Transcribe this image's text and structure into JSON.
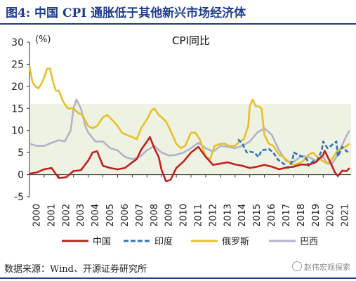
{
  "figure_title": "图4:  中国 CPI 通胀低于其他新兴市场经济体",
  "source_note": "数据来源：Wind、开源证券研究所",
  "watermark": "赵伟宏观探索",
  "colors": {
    "title": "#1f3d8a",
    "band": "#eef2e2",
    "china": "#c0201e",
    "india": "#2e75b6",
    "russia": "#e6c02a",
    "brazil": "#b3b3c8"
  },
  "chart_data": {
    "type": "line",
    "title": "CPI同比",
    "ylabel": "(%)",
    "xlabel": "",
    "ylim": [
      -5,
      30
    ],
    "xlim": [
      2000,
      2021.9
    ],
    "yticks": [
      -5,
      0,
      5,
      10,
      15,
      20,
      25,
      30
    ],
    "xtick_labels": [
      "2000",
      "2001",
      "2002",
      "2003",
      "2004",
      "2005",
      "2006",
      "2007",
      "2008",
      "2009",
      "2010",
      "2011",
      "2012",
      "2013",
      "2014",
      "2015",
      "2016",
      "2017",
      "2018",
      "2019",
      "2020",
      "2021"
    ],
    "shaded_band": [
      0,
      16
    ],
    "grid": false,
    "legend_position": "bottom",
    "series": [
      {
        "name": "中国",
        "color": "#c0201e",
        "style": "solid",
        "x": [
          2000,
          2000.5,
          2001,
          2001.5,
          2002,
          2002.5,
          2003,
          2003.5,
          2004,
          2004.3,
          2004.6,
          2005,
          2005.5,
          2006,
          2006.5,
          2007,
          2007.3,
          2007.6,
          2008,
          2008.2,
          2008.5,
          2008.8,
          2009,
          2009.3,
          2009.6,
          2010,
          2010.5,
          2011,
          2011.5,
          2012,
          2012.5,
          2013,
          2013.5,
          2014,
          2014.5,
          2015,
          2015.5,
          2016,
          2016.5,
          2017,
          2017.5,
          2018,
          2018.5,
          2019,
          2019.5,
          2020,
          2020.1,
          2020.5,
          2020.8,
          2021,
          2021.3,
          2021.6,
          2021.8
        ],
        "y": [
          0.2,
          0.5,
          1.2,
          1.5,
          -0.8,
          -0.6,
          0.8,
          1.0,
          3.2,
          5.0,
          5.3,
          2.0,
          1.5,
          1.2,
          1.5,
          2.8,
          3.5,
          5.6,
          7.5,
          8.5,
          6.0,
          4.0,
          1.0,
          -1.5,
          -1.2,
          1.5,
          3.0,
          5.0,
          6.3,
          4.0,
          2.2,
          2.5,
          2.8,
          2.3,
          2.0,
          1.5,
          1.8,
          2.2,
          1.8,
          1.2,
          1.6,
          1.8,
          2.3,
          2.2,
          2.8,
          4.5,
          5.4,
          2.7,
          0.5,
          -0.3,
          0.9,
          0.8,
          1.5
        ]
      },
      {
        "name": "印度",
        "color": "#2e75b6",
        "style": "dashed",
        "x": [
          2014.2,
          2014.5,
          2014.8,
          2015,
          2015.3,
          2015.6,
          2015.8,
          2016,
          2016.3,
          2016.6,
          2016.9,
          2017,
          2017.3,
          2017.6,
          2017.9,
          2018,
          2018.3,
          2018.6,
          2018.9,
          2019,
          2019.3,
          2019.6,
          2019.9,
          2020,
          2020.3,
          2020.6,
          2020.9,
          2021,
          2021.3,
          2021.6,
          2021.8
        ],
        "y": [
          8.0,
          7.0,
          5.0,
          5.2,
          5.0,
          4.0,
          5.5,
          5.6,
          5.8,
          5.0,
          3.5,
          3.2,
          2.5,
          1.5,
          3.0,
          5.0,
          4.5,
          4.0,
          3.5,
          2.0,
          3.0,
          3.2,
          5.5,
          7.5,
          6.0,
          6.7,
          7.5,
          4.1,
          6.3,
          5.3,
          5.0
        ]
      },
      {
        "name": "俄罗斯",
        "color": "#e6c02a",
        "style": "solid",
        "x": [
          2000,
          2000.2,
          2000.4,
          2000.6,
          2000.8,
          2001,
          2001.2,
          2001.4,
          2001.6,
          2001.8,
          2002,
          2002.3,
          2002.6,
          2003,
          2003.3,
          2003.6,
          2004,
          2004.3,
          2004.6,
          2005,
          2005.3,
          2005.6,
          2006,
          2006.3,
          2006.6,
          2007,
          2007.3,
          2007.6,
          2008,
          2008.3,
          2008.5,
          2008.8,
          2009,
          2009.3,
          2009.6,
          2010,
          2010.3,
          2010.6,
          2011,
          2011.3,
          2011.6,
          2012,
          2012.3,
          2012.6,
          2013,
          2013.3,
          2013.6,
          2014,
          2014.3,
          2014.6,
          2014.9,
          2015,
          2015.2,
          2015.4,
          2015.6,
          2015.8,
          2016,
          2016.3,
          2016.6,
          2017,
          2017.3,
          2017.6,
          2018,
          2018.3,
          2018.6,
          2019,
          2019.3,
          2019.6,
          2020,
          2020.3,
          2020.6,
          2021,
          2021.3,
          2021.6,
          2021.8
        ],
        "y": [
          24.5,
          21.0,
          20.0,
          19.5,
          20.5,
          22.0,
          24.0,
          24.0,
          21.0,
          19.0,
          19.0,
          16.5,
          15.0,
          15.0,
          14.0,
          13.5,
          11.0,
          10.5,
          11.0,
          13.0,
          13.5,
          12.5,
          11.0,
          9.5,
          9.0,
          8.5,
          8.0,
          10.5,
          12.5,
          14.5,
          15.0,
          13.5,
          13.0,
          12.0,
          10.0,
          7.0,
          6.0,
          6.5,
          9.5,
          9.5,
          8.0,
          4.0,
          3.5,
          6.5,
          7.0,
          7.0,
          6.5,
          6.5,
          7.5,
          8.0,
          11.0,
          15.5,
          17.0,
          15.5,
          15.5,
          15.0,
          9.0,
          7.0,
          6.5,
          4.5,
          4.0,
          3.0,
          2.2,
          2.5,
          3.0,
          4.5,
          5.0,
          4.0,
          3.0,
          2.5,
          3.5,
          5.5,
          6.0,
          6.5,
          7.0
        ]
      },
      {
        "name": "巴西",
        "color": "#b3b3c8",
        "style": "solid",
        "x": [
          2000,
          2000.5,
          2001,
          2001.5,
          2002,
          2002.4,
          2002.8,
          2003,
          2003.2,
          2003.5,
          2003.8,
          2004,
          2004.5,
          2005,
          2005.5,
          2006,
          2006.5,
          2007,
          2007.5,
          2008,
          2008.5,
          2009,
          2009.5,
          2010,
          2010.5,
          2011,
          2011.5,
          2012,
          2012.5,
          2013,
          2013.5,
          2014,
          2014.5,
          2015,
          2015.5,
          2016,
          2016.5,
          2017,
          2017.5,
          2018,
          2018.5,
          2019,
          2019.5,
          2020,
          2020.3,
          2020.6,
          2021,
          2021.3,
          2021.6,
          2021.8
        ],
        "y": [
          7.0,
          6.5,
          6.5,
          7.2,
          7.8,
          7.5,
          10.0,
          15.0,
          17.0,
          15.0,
          11.0,
          9.5,
          7.5,
          7.5,
          6.0,
          5.5,
          4.0,
          3.5,
          4.0,
          5.5,
          6.5,
          5.0,
          4.3,
          4.5,
          5.0,
          6.0,
          7.2,
          6.0,
          5.2,
          6.5,
          6.3,
          6.0,
          6.5,
          7.5,
          9.5,
          10.5,
          9.0,
          5.5,
          3.0,
          2.9,
          4.2,
          4.0,
          3.2,
          4.0,
          2.5,
          2.5,
          4.5,
          6.8,
          8.9,
          10.0
        ]
      }
    ]
  }
}
